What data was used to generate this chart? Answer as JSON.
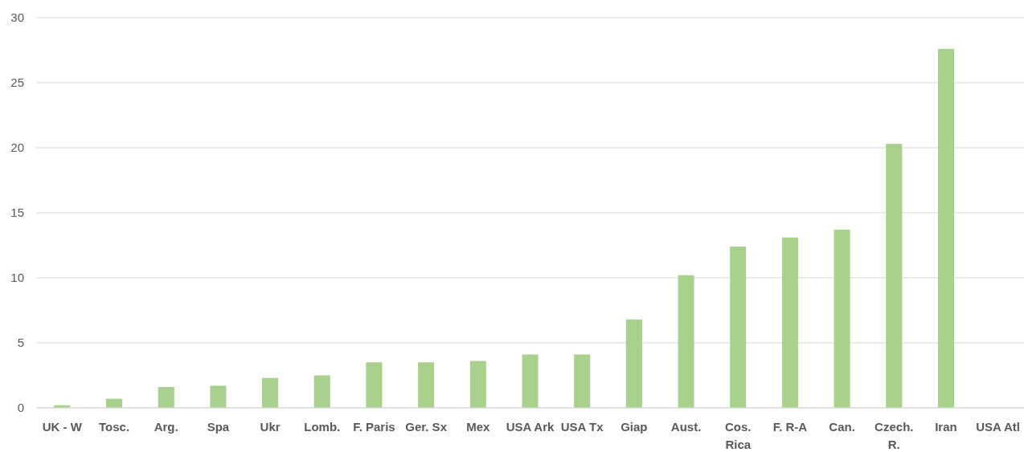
{
  "chart_data": {
    "type": "bar",
    "categories": [
      "UK - W",
      "Tosc.",
      "Arg.",
      "Spa",
      "Ukr",
      "Lomb.",
      "F. Paris",
      "Ger. Sx",
      "Mex",
      "USA Ark",
      "USA Tx",
      "Giap",
      "Aust.",
      "Cos.\nRica",
      "F. R-A",
      "Can.",
      "Czech.\nR.",
      "Iran",
      "USA Atl"
    ],
    "values": [
      0.2,
      0.7,
      1.6,
      1.7,
      2.3,
      2.5,
      3.5,
      3.5,
      3.6,
      4.1,
      4.1,
      6.8,
      10.2,
      12.4,
      13.1,
      13.7,
      20.3,
      27.6,
      0
    ],
    "color": "#a9d18e",
    "ylim": [
      0,
      30
    ],
    "yticks": [
      0,
      5,
      10,
      15,
      20,
      25,
      30
    ],
    "grid": "y"
  }
}
